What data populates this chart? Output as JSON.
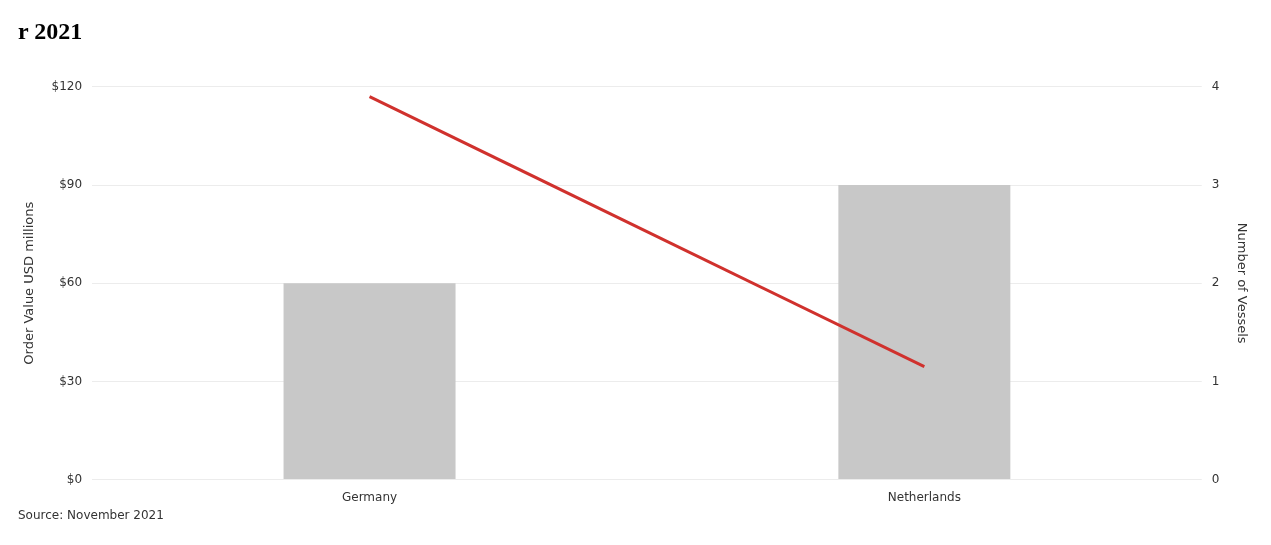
{
  "chart_data": {
    "type": "bar",
    "title": "r 2021",
    "ylabel": "Order Value USD millions",
    "y2label": "Number of Vessels",
    "categories": [
      "Germany",
      "Netherlands"
    ],
    "series": [
      {
        "color": "#c8c8c8",
        "values": [
          60,
          90
        ]
      },
      {
        "type": "line",
        "axis": "y2",
        "color": "#d0312d",
        "values": [
          3.9,
          1.15
        ]
      }
    ],
    "ylim": [
      0,
      120
    ],
    "yticks": [
      {
        "value": 0,
        "label": "$0"
      },
      {
        "value": 30,
        "label": "$30"
      },
      {
        "value": 60,
        "label": "$60"
      },
      {
        "value": 90,
        "label": "$90"
      },
      {
        "value": 120,
        "label": "$120"
      }
    ],
    "y2lim": [
      0,
      4
    ],
    "y2ticks": [
      0,
      1,
      2,
      3,
      4
    ],
    "grid": "y",
    "legend": false,
    "marker": "none",
    "line_style": "solid",
    "annotations": [
      "Source: November 2021"
    ]
  }
}
